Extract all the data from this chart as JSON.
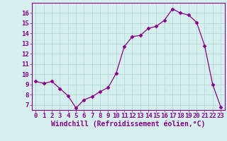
{
  "x": [
    0,
    1,
    2,
    3,
    4,
    5,
    6,
    7,
    8,
    9,
    10,
    11,
    12,
    13,
    14,
    15,
    16,
    17,
    18,
    19,
    20,
    21,
    22,
    23
  ],
  "y": [
    9.3,
    9.1,
    9.3,
    8.6,
    7.9,
    6.7,
    7.5,
    7.8,
    8.3,
    8.7,
    10.1,
    12.7,
    13.7,
    13.8,
    14.5,
    14.7,
    15.3,
    16.4,
    16.0,
    15.8,
    15.1,
    12.8,
    9.0,
    6.8
  ],
  "line_color": "#880088",
  "marker": "D",
  "marker_size": 2.5,
  "bg_color": "#d5efef",
  "grid_color": "#b8d8d8",
  "xlabel": "Windchill (Refroidissement éolien,°C)",
  "xlim": [
    -0.5,
    23.5
  ],
  "ylim": [
    6.5,
    17.0
  ],
  "yticks": [
    7,
    8,
    9,
    10,
    11,
    12,
    13,
    14,
    15,
    16
  ],
  "xticks": [
    0,
    1,
    2,
    3,
    4,
    5,
    6,
    7,
    8,
    9,
    10,
    11,
    12,
    13,
    14,
    15,
    16,
    17,
    18,
    19,
    20,
    21,
    22,
    23
  ],
  "tick_fontsize": 6.5,
  "label_fontsize": 7.0,
  "spine_color": "#880088"
}
